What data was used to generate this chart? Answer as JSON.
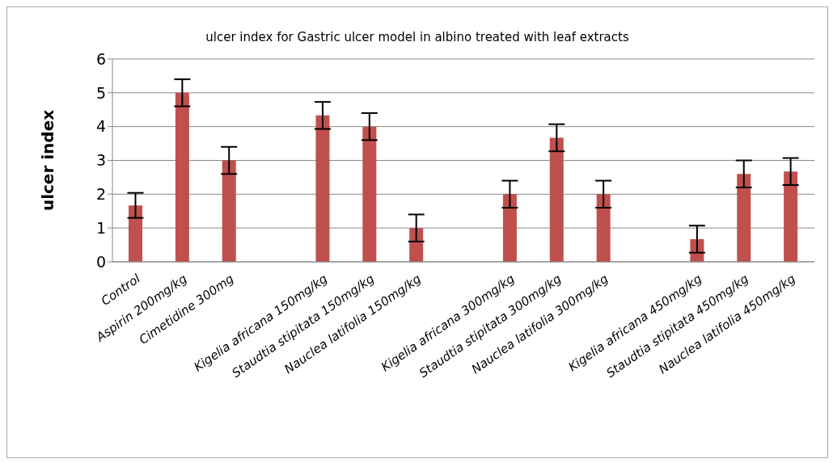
{
  "chart_data": {
    "type": "bar",
    "title": "ulcer index for Gastric ulcer model in albino treated with leaf extracts",
    "ylabel": "ulcer index",
    "categories": [
      "Control",
      "Aspirin 200mg/kg",
      "Cimetidine 300mg",
      null,
      "Kigelia africana 150mg/kg",
      "Staudtia stipitata 150mg/kg",
      "Nauclea latifolia 150mg/kg",
      null,
      "Kigelia africana 300mg/kg",
      "Staudtia stipitata 300mg/kg",
      "Nauclea latifolia 300mg/kg",
      null,
      "Kigelia africana 450mg/kg",
      "Staudtia stipitata 450mg/kg",
      "Nauclea latifolia 450mg/kg"
    ],
    "values": [
      1.67,
      5.0,
      3.0,
      null,
      4.33,
      4.0,
      1.0,
      null,
      2.0,
      3.67,
      2.0,
      null,
      0.67,
      2.6,
      2.67
    ],
    "errors": [
      0.37,
      0.4,
      0.4,
      null,
      0.4,
      0.4,
      0.4,
      null,
      0.4,
      0.4,
      0.4,
      null,
      0.4,
      0.4,
      0.4
    ],
    "color": "#c0504d",
    "ylim": [
      0,
      6
    ],
    "yticks": [
      0,
      1,
      2,
      3,
      4,
      5,
      6
    ],
    "grid": "y"
  }
}
